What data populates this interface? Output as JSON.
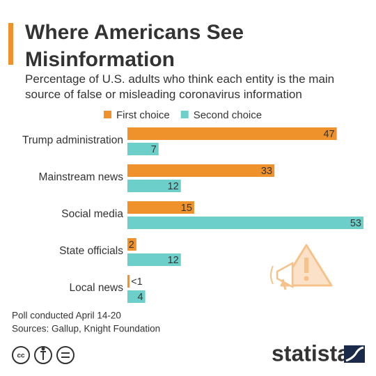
{
  "chart_data": {
    "type": "bar",
    "orientation": "horizontal",
    "title": "Where Americans See Misinformation",
    "subtitle": "Percentage of U.S. adults who think each entity is the main source of false or misleading coronavirus information",
    "categories": [
      "Trump administration",
      "Mainstream news",
      "Social media",
      "State officials",
      "Local news"
    ],
    "series": [
      {
        "name": "First choice",
        "color": "#f0922b",
        "values": [
          47,
          33,
          15,
          2,
          0.5
        ],
        "value_labels": [
          "47",
          "33",
          "15",
          "2",
          "<1"
        ]
      },
      {
        "name": "Second choice",
        "color": "#6dcfc9",
        "values": [
          7,
          12,
          53,
          12,
          4
        ]
      }
    ],
    "notes": [
      "Poll conducted April 14-20",
      "Sources: Gallup, Knight Foundation"
    ],
    "brand": "statista"
  }
}
